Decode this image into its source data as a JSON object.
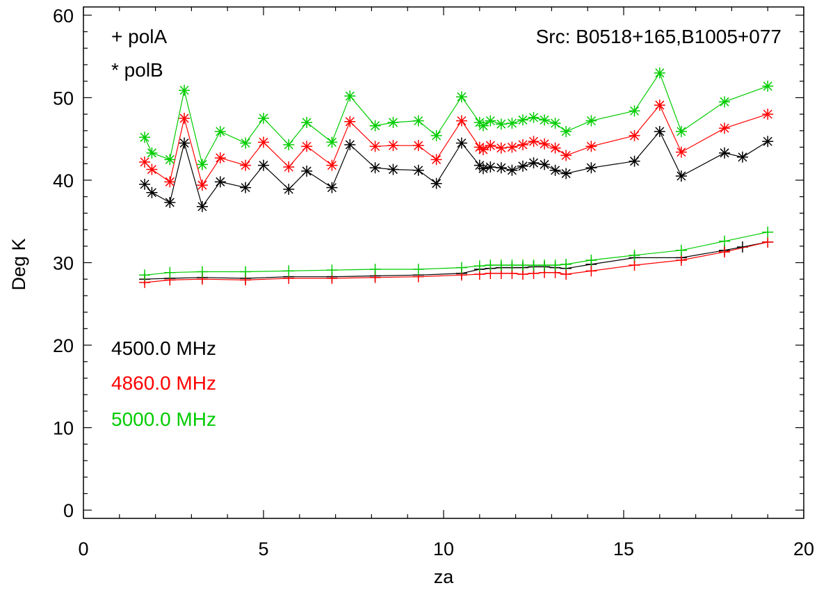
{
  "chart_data": {
    "type": "line",
    "xlabel": "za",
    "ylabel": "Deg K",
    "xlim": [
      0,
      20
    ],
    "ylim": [
      -1,
      61
    ],
    "xticks": [
      0,
      5,
      10,
      15,
      20
    ],
    "yticks": [
      0,
      10,
      20,
      30,
      40,
      50,
      60
    ],
    "grid": false,
    "annotations": {
      "polA": "+ polA",
      "polB": "* polB",
      "source": "Src: B0518+165,B1005+077"
    },
    "legend": {
      "placement": "left-middle",
      "entries": [
        {
          "label": "4500.0 MHz",
          "color": "#000000"
        },
        {
          "label": "4860.0 MHz",
          "color": "#ff0000"
        },
        {
          "label": "5000.0 MHz",
          "color": "#00cc00"
        }
      ]
    },
    "series": [
      {
        "freq": "4500.0 MHz",
        "pol": "polA",
        "marker": "plus",
        "color": "#000000",
        "x": [
          1.7,
          2.4,
          3.3,
          4.5,
          5.7,
          6.9,
          8.1,
          9.3,
          10.5,
          11.0,
          11.3,
          11.6,
          11.9,
          12.2,
          12.5,
          12.8,
          13.1,
          13.4,
          14.1,
          15.3,
          16.6,
          17.8,
          18.3,
          19.0
        ],
        "y": [
          28.0,
          28.1,
          28.2,
          28.1,
          28.3,
          28.3,
          28.4,
          28.5,
          28.7,
          29.2,
          29.3,
          29.4,
          29.4,
          29.4,
          29.5,
          29.5,
          29.4,
          29.3,
          29.8,
          30.6,
          30.6,
          31.5,
          31.9,
          32.5
        ]
      },
      {
        "freq": "4860.0 MHz",
        "pol": "polA",
        "marker": "plus",
        "color": "#ff0000",
        "x": [
          1.7,
          2.4,
          3.3,
          4.5,
          5.7,
          6.9,
          8.1,
          9.3,
          10.5,
          11.0,
          11.3,
          11.6,
          11.9,
          12.2,
          12.5,
          12.8,
          13.1,
          13.4,
          14.1,
          15.3,
          16.6,
          17.8,
          19.0
        ],
        "y": [
          27.6,
          27.9,
          28.0,
          27.9,
          28.1,
          28.1,
          28.2,
          28.3,
          28.5,
          28.6,
          28.7,
          28.7,
          28.7,
          28.6,
          28.7,
          28.8,
          28.8,
          28.6,
          29.0,
          29.7,
          30.3,
          31.3,
          32.5
        ]
      },
      {
        "freq": "5000.0 MHz",
        "pol": "polA",
        "marker": "plus",
        "color": "#00cc00",
        "x": [
          1.7,
          2.4,
          3.3,
          4.5,
          5.7,
          6.9,
          8.1,
          9.3,
          10.5,
          11.0,
          11.3,
          11.6,
          11.9,
          12.2,
          12.5,
          12.8,
          13.1,
          13.4,
          14.1,
          15.3,
          16.6,
          17.8,
          19.0
        ],
        "y": [
          28.5,
          28.8,
          28.9,
          28.9,
          29.0,
          29.1,
          29.2,
          29.2,
          29.4,
          29.6,
          29.7,
          29.7,
          29.7,
          29.7,
          29.7,
          29.7,
          29.7,
          29.8,
          30.3,
          30.9,
          31.5,
          32.6,
          33.7
        ]
      },
      {
        "freq": "4500.0 MHz",
        "pol": "polB",
        "marker": "star",
        "color": "#000000",
        "x": [
          1.7,
          1.9,
          2.4,
          2.8,
          3.3,
          3.8,
          4.5,
          5.0,
          5.7,
          6.2,
          6.9,
          7.4,
          8.1,
          8.6,
          9.3,
          9.8,
          10.5,
          11.0,
          11.1,
          11.3,
          11.6,
          11.9,
          12.2,
          12.5,
          12.8,
          13.1,
          13.4,
          14.1,
          15.3,
          16.0,
          16.6,
          17.8,
          18.3,
          19.0
        ],
        "y": [
          39.5,
          38.5,
          37.3,
          44.5,
          36.8,
          39.8,
          39.1,
          41.8,
          38.9,
          41.1,
          39.1,
          44.3,
          41.5,
          41.3,
          41.2,
          39.6,
          44.5,
          41.8,
          41.4,
          41.6,
          41.5,
          41.2,
          41.7,
          42.1,
          41.9,
          41.2,
          40.8,
          41.5,
          42.3,
          45.9,
          40.5,
          43.3,
          42.8,
          44.7
        ]
      },
      {
        "freq": "4860.0 MHz",
        "pol": "polB",
        "marker": "star",
        "color": "#ff0000",
        "x": [
          1.7,
          1.9,
          2.4,
          2.8,
          3.3,
          3.8,
          4.5,
          5.0,
          5.7,
          6.2,
          6.9,
          7.4,
          8.1,
          8.6,
          9.3,
          9.8,
          10.5,
          11.0,
          11.1,
          11.3,
          11.6,
          11.9,
          12.2,
          12.5,
          12.8,
          13.1,
          13.4,
          14.1,
          15.3,
          16.0,
          16.6,
          17.8,
          19.0
        ],
        "y": [
          42.2,
          41.3,
          39.8,
          47.5,
          39.4,
          42.7,
          41.8,
          44.6,
          41.6,
          44.1,
          41.8,
          47.1,
          44.1,
          44.2,
          44.2,
          42.5,
          47.2,
          44.0,
          43.7,
          44.2,
          43.9,
          44.0,
          44.3,
          44.7,
          44.4,
          43.9,
          43.0,
          44.1,
          45.4,
          49.1,
          43.4,
          46.3,
          48.0
        ]
      },
      {
        "freq": "5000.0 MHz",
        "pol": "polB",
        "marker": "star",
        "color": "#00cc00",
        "x": [
          1.7,
          1.9,
          2.4,
          2.8,
          3.3,
          3.8,
          4.5,
          5.0,
          5.7,
          6.2,
          6.9,
          7.4,
          8.1,
          8.6,
          9.3,
          9.8,
          10.5,
          11.0,
          11.1,
          11.3,
          11.6,
          11.9,
          12.2,
          12.5,
          12.8,
          13.1,
          13.4,
          14.1,
          15.3,
          16.0,
          16.6,
          17.8,
          19.0
        ],
        "y": [
          45.2,
          43.3,
          42.5,
          50.9,
          41.9,
          45.9,
          44.5,
          47.5,
          44.3,
          47.0,
          44.6,
          50.2,
          46.6,
          47.0,
          47.2,
          45.4,
          50.1,
          47.0,
          46.6,
          47.2,
          46.8,
          46.9,
          47.3,
          47.6,
          47.3,
          46.9,
          45.9,
          47.2,
          48.4,
          53.0,
          45.9,
          49.5,
          51.4
        ]
      }
    ]
  }
}
